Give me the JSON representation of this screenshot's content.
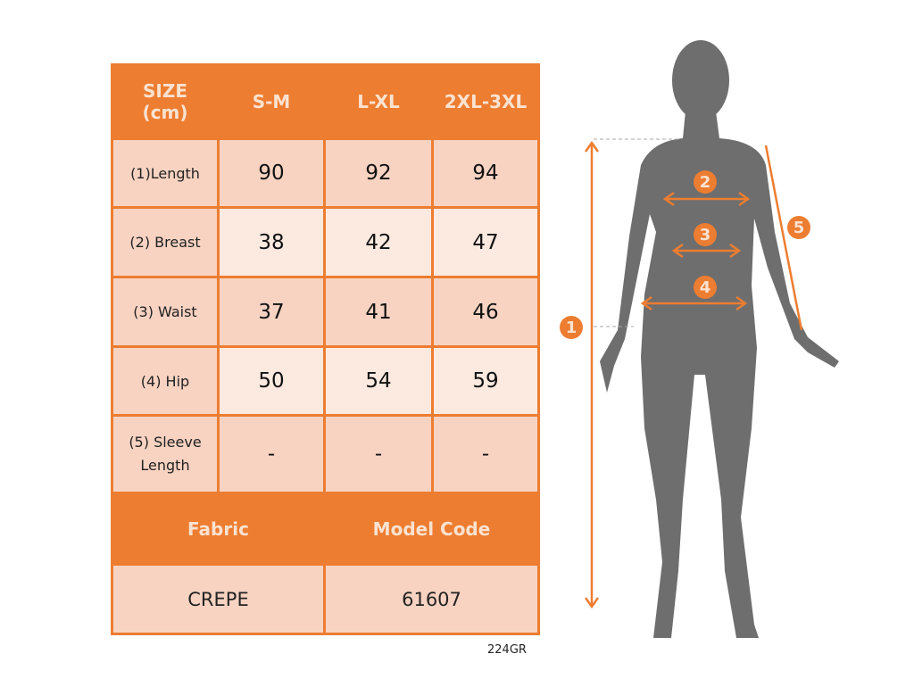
{
  "table": {
    "header": [
      "SIZE\n(cm)",
      "S-M",
      "L-XL",
      "2XL-3XL"
    ],
    "header_line1": "SIZE",
    "header_line2": "(cm)",
    "rows": [
      {
        "label": "(1)Length",
        "values": [
          "90",
          "92",
          "94"
        ]
      },
      {
        "label": "(2) Breast",
        "values": [
          "38",
          "42",
          "47"
        ]
      },
      {
        "label": "(3) Waist",
        "values": [
          "37",
          "41",
          "46"
        ]
      },
      {
        "label": "(4) Hip",
        "values": [
          "50",
          "54",
          "59"
        ]
      },
      {
        "label_line1": "(5) Sleeve",
        "label_line2": "Length",
        "values": [
          "-",
          "-",
          "-"
        ]
      }
    ],
    "fabric_label": "Fabric",
    "model_code_label": "Model Code",
    "fabric": "CREPE",
    "model_code": "61607"
  },
  "product_code": "224GR",
  "diagram": {
    "markers": [
      "1",
      "2",
      "3",
      "4",
      "5"
    ],
    "accent_color": "#ED7D31",
    "silhouette_color": "#6E6E6E"
  }
}
